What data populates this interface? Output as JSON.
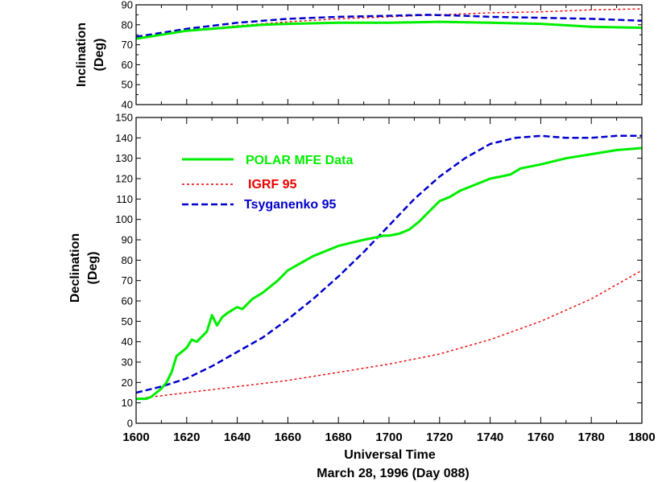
{
  "chart_data": [
    {
      "type": "line",
      "ylabel_line1": "Inclination",
      "ylabel_line2": "(Deg)",
      "xlim": [
        1600,
        1800
      ],
      "ylim": [
        40,
        90
      ],
      "yticks": [
        40,
        50,
        60,
        70,
        80,
        90
      ],
      "yticks_minor": [
        45,
        55,
        65,
        75,
        85
      ],
      "series": [
        {
          "key": "polar",
          "color": "#00ee00",
          "style": "solid",
          "x": [
            1600,
            1610,
            1620,
            1630,
            1640,
            1650,
            1660,
            1680,
            1700,
            1720,
            1740,
            1760,
            1780,
            1800
          ],
          "values": [
            73,
            75,
            77,
            78,
            79,
            80,
            80.5,
            81,
            81,
            81.5,
            81,
            80.5,
            79,
            78.5
          ]
        },
        {
          "key": "igrf",
          "color": "#ee0000",
          "style": "dotted",
          "x": [
            1600,
            1620,
            1640,
            1660,
            1680,
            1700,
            1720,
            1740,
            1760,
            1780,
            1800
          ],
          "values": [
            73,
            77,
            79.5,
            81.5,
            83,
            84,
            85,
            86,
            86.5,
            87.5,
            88
          ]
        },
        {
          "key": "tsyg",
          "color": "#0000cc",
          "style": "dashed",
          "x": [
            1600,
            1620,
            1640,
            1660,
            1680,
            1700,
            1715,
            1730,
            1740,
            1760,
            1780,
            1800
          ],
          "values": [
            74,
            78,
            81,
            83,
            84,
            84.5,
            85,
            84.5,
            84,
            83.5,
            83,
            82
          ]
        }
      ]
    },
    {
      "type": "line",
      "ylabel_line1": "Declination",
      "ylabel_line2": "(Deg)",
      "xlim": [
        1600,
        1800
      ],
      "ylim": [
        0,
        150
      ],
      "yticks": [
        0,
        10,
        20,
        30,
        40,
        50,
        60,
        70,
        80,
        90,
        100,
        110,
        120,
        130,
        140,
        150
      ],
      "xticks": [
        1600,
        1620,
        1640,
        1660,
        1680,
        1700,
        1720,
        1740,
        1760,
        1780,
        1800
      ],
      "xticks_minor": [
        1610,
        1630,
        1650,
        1670,
        1690,
        1710,
        1730,
        1750,
        1770,
        1790
      ],
      "xlabel": "Universal Time",
      "xlabel_date": "March 28, 1996 (Day 088)",
      "legend": {
        "position": "upper-left",
        "entries": [
          {
            "key": "polar",
            "label": "POLAR MFE Data"
          },
          {
            "key": "igrf",
            "label": "IGRF 95"
          },
          {
            "key": "tsyg",
            "label": "Tsyganenko 95"
          }
        ]
      },
      "series": [
        {
          "key": "polar",
          "name": "POLAR MFE Data",
          "color": "#00ee00",
          "style": "solid",
          "x": [
            1600,
            1604,
            1606,
            1608,
            1610,
            1612,
            1614,
            1616,
            1620,
            1622,
            1624,
            1628,
            1630,
            1632,
            1634,
            1636,
            1640,
            1642,
            1646,
            1650,
            1656,
            1660,
            1670,
            1680,
            1690,
            1694,
            1698,
            1700,
            1704,
            1708,
            1712,
            1716,
            1720,
            1724,
            1728,
            1732,
            1736,
            1740,
            1744,
            1748,
            1752,
            1760,
            1770,
            1780,
            1790,
            1800
          ],
          "values": [
            12,
            12,
            13,
            15,
            17,
            20,
            25,
            33,
            37,
            41,
            40,
            45,
            53,
            48,
            52,
            54,
            57,
            56,
            61,
            64,
            70,
            75,
            82,
            87,
            90,
            91,
            92,
            92,
            93,
            95,
            99,
            104,
            109,
            111,
            114,
            116,
            118,
            120,
            121,
            122,
            125,
            127,
            130,
            132,
            134,
            135
          ]
        },
        {
          "key": "igrf",
          "name": "IGRF 95",
          "color": "#ee0000",
          "style": "dotted",
          "x": [
            1600,
            1620,
            1640,
            1660,
            1680,
            1700,
            1720,
            1740,
            1760,
            1780,
            1800
          ],
          "values": [
            12,
            15,
            18,
            21,
            25,
            29,
            34,
            41,
            50,
            61,
            75
          ]
        },
        {
          "key": "tsyg",
          "name": "Tsyganenko 95",
          "color": "#0000cc",
          "style": "dashed",
          "x": [
            1600,
            1610,
            1620,
            1630,
            1640,
            1650,
            1660,
            1670,
            1680,
            1690,
            1700,
            1710,
            1720,
            1730,
            1740,
            1750,
            1760,
            1770,
            1780,
            1790,
            1800
          ],
          "values": [
            15,
            18,
            22,
            28,
            35,
            42,
            51,
            61,
            72,
            84,
            97,
            110,
            121,
            130,
            137,
            140,
            141,
            140,
            140,
            141,
            141
          ]
        }
      ]
    }
  ]
}
